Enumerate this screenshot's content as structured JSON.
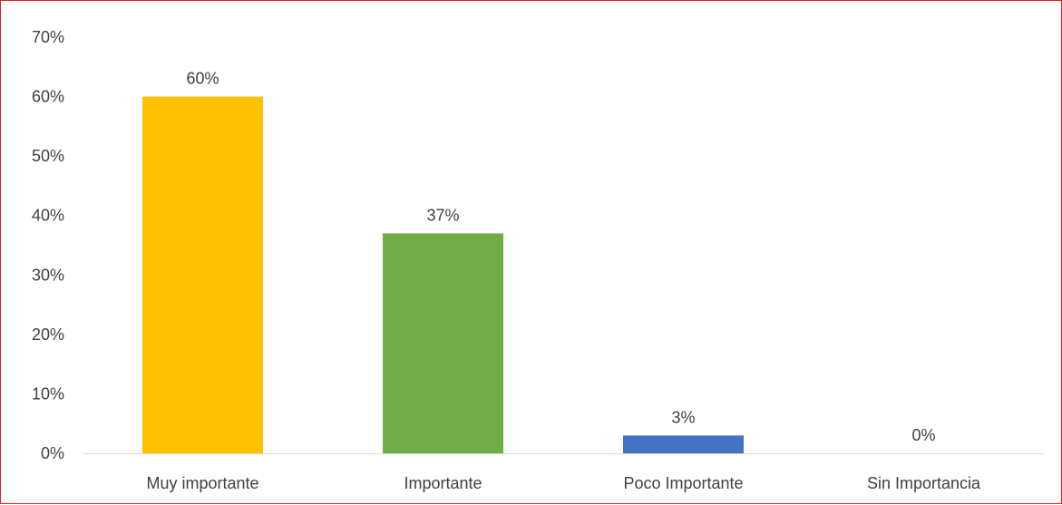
{
  "chart_data": {
    "type": "bar",
    "title": "",
    "xlabel": "",
    "ylabel": "",
    "categories": [
      "Muy importante",
      "Importante",
      "Poco Importante",
      "Sin Importancia"
    ],
    "values": [
      60,
      37,
      3,
      0
    ],
    "data_labels": [
      "60%",
      "37%",
      "3%",
      "0%"
    ],
    "colors": [
      "#FFC000",
      "#70AD47",
      "#4472C4",
      "#A5A5A5"
    ],
    "ylim": [
      0,
      70
    ],
    "yticks": [
      0,
      10,
      20,
      30,
      40,
      50,
      60,
      70
    ],
    "ytick_labels": [
      "0%",
      "10%",
      "20%",
      "30%",
      "40%",
      "50%",
      "60%",
      "70%"
    ],
    "grid": false,
    "legend": "none",
    "border_color": "#E02020"
  }
}
